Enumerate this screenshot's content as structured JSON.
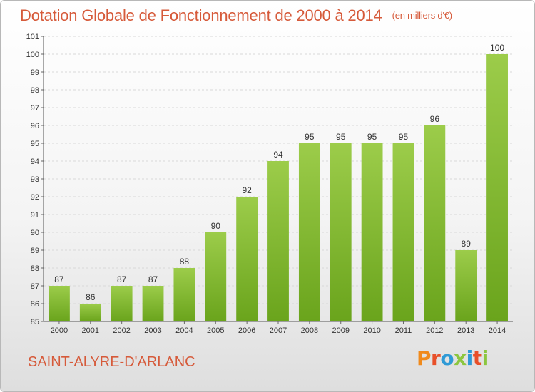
{
  "header": {
    "title": "Dotation Globale de Fonctionnement de 2000 à 2014",
    "unit": "(en milliers d'€)"
  },
  "footer": {
    "city": "SAINT-ALYRE-D'ARLANC",
    "logo": "Proxiti"
  },
  "colors": {
    "bar_top": "#9ccc4a",
    "bar_bottom": "#6aa41c",
    "title": "#d65a3a",
    "logo_letters": [
      "#f08a1c",
      "#e8502a",
      "#2f9ad6",
      "#8cc63f",
      "#2f9ad6",
      "#e8502a",
      "#8cc63f"
    ]
  },
  "chart_data": {
    "type": "bar",
    "title": "Dotation Globale de Fonctionnement de 2000 à 2014",
    "subtitle": "(en milliers d'€)",
    "categories": [
      "2000",
      "2001",
      "2002",
      "2003",
      "2004",
      "2005",
      "2006",
      "2007",
      "2008",
      "2009",
      "2010",
      "2011",
      "2012",
      "2013",
      "2014"
    ],
    "values": [
      87,
      86,
      87,
      87,
      88,
      90,
      92,
      94,
      95,
      95,
      95,
      95,
      96,
      89,
      100
    ],
    "ylim": [
      85,
      101
    ],
    "yticks": [
      "85",
      "86",
      "87",
      "88",
      "89",
      "90",
      "91",
      "92",
      "93",
      "94",
      "95",
      "96",
      "97",
      "98",
      "99",
      "100",
      "101"
    ],
    "grid": true,
    "xlabel": "",
    "ylabel": ""
  }
}
